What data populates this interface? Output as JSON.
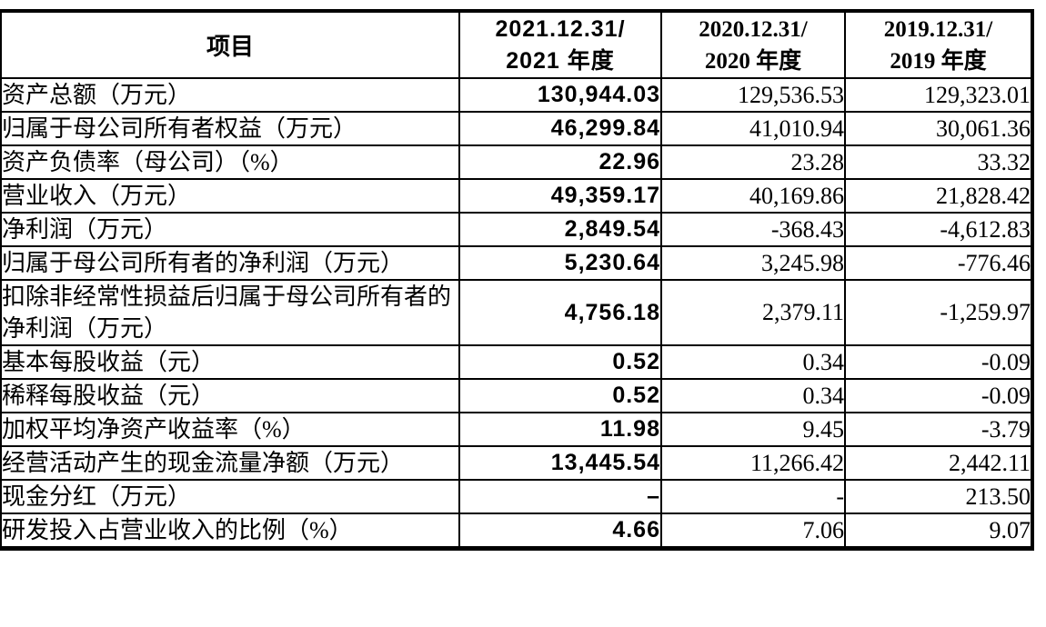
{
  "page": {
    "background_color": "#ffffff",
    "text_color": "#000000",
    "border_color": "#000000"
  },
  "table": {
    "header": {
      "item": "项目",
      "c2021": {
        "line1": "2021.12.31/",
        "line2": "2021 年度"
      },
      "c2020": {
        "line1": "2020.12.31/",
        "line2": "2020 年度"
      },
      "c2019": {
        "line1": "2019.12.31/",
        "line2": "2019 年度"
      }
    },
    "rows": [
      {
        "label": "资产总额（万元）",
        "y2021": "130,944.03",
        "y2020": "129,536.53",
        "y2019": "129,323.01"
      },
      {
        "label": "归属于母公司所有者权益（万元）",
        "y2021": "46,299.84",
        "y2020": "41,010.94",
        "y2019": "30,061.36"
      },
      {
        "label": "资产负债率（母公司）（%）",
        "y2021": "22.96",
        "y2020": "23.28",
        "y2019": "33.32"
      },
      {
        "label": "营业收入（万元）",
        "y2021": "49,359.17",
        "y2020": "40,169.86",
        "y2019": "21,828.42"
      },
      {
        "label": "净利润（万元）",
        "y2021": "2,849.54",
        "y2020": "-368.43",
        "y2019": "-4,612.83"
      },
      {
        "label": "归属于母公司所有者的净利润（万元）",
        "y2021": "5,230.64",
        "y2020": "3,245.98",
        "y2019": "-776.46"
      },
      {
        "label": "扣除非经常性损益后归属于母公司所有者的净利润（万元）",
        "y2021": "4,756.18",
        "y2020": "2,379.11",
        "y2019": "-1,259.97"
      },
      {
        "label": "基本每股收益（元）",
        "y2021": "0.52",
        "y2020": "0.34",
        "y2019": "-0.09"
      },
      {
        "label": "稀释每股收益（元）",
        "y2021": "0.52",
        "y2020": "0.34",
        "y2019": "-0.09"
      },
      {
        "label": "加权平均净资产收益率（%）",
        "y2021": "11.98",
        "y2020": "9.45",
        "y2019": "-3.79"
      },
      {
        "label": "经营活动产生的现金流量净额（万元）",
        "y2021": "13,445.54",
        "y2020": "11,266.42",
        "y2019": "2,442.11"
      },
      {
        "label": "现金分红（万元）",
        "y2021": "–",
        "y2020": "-",
        "y2019": "213.50"
      },
      {
        "label": "研发投入占营业收入的比例（%）",
        "y2021": "4.66",
        "y2020": "7.06",
        "y2019": "9.07"
      }
    ]
  }
}
